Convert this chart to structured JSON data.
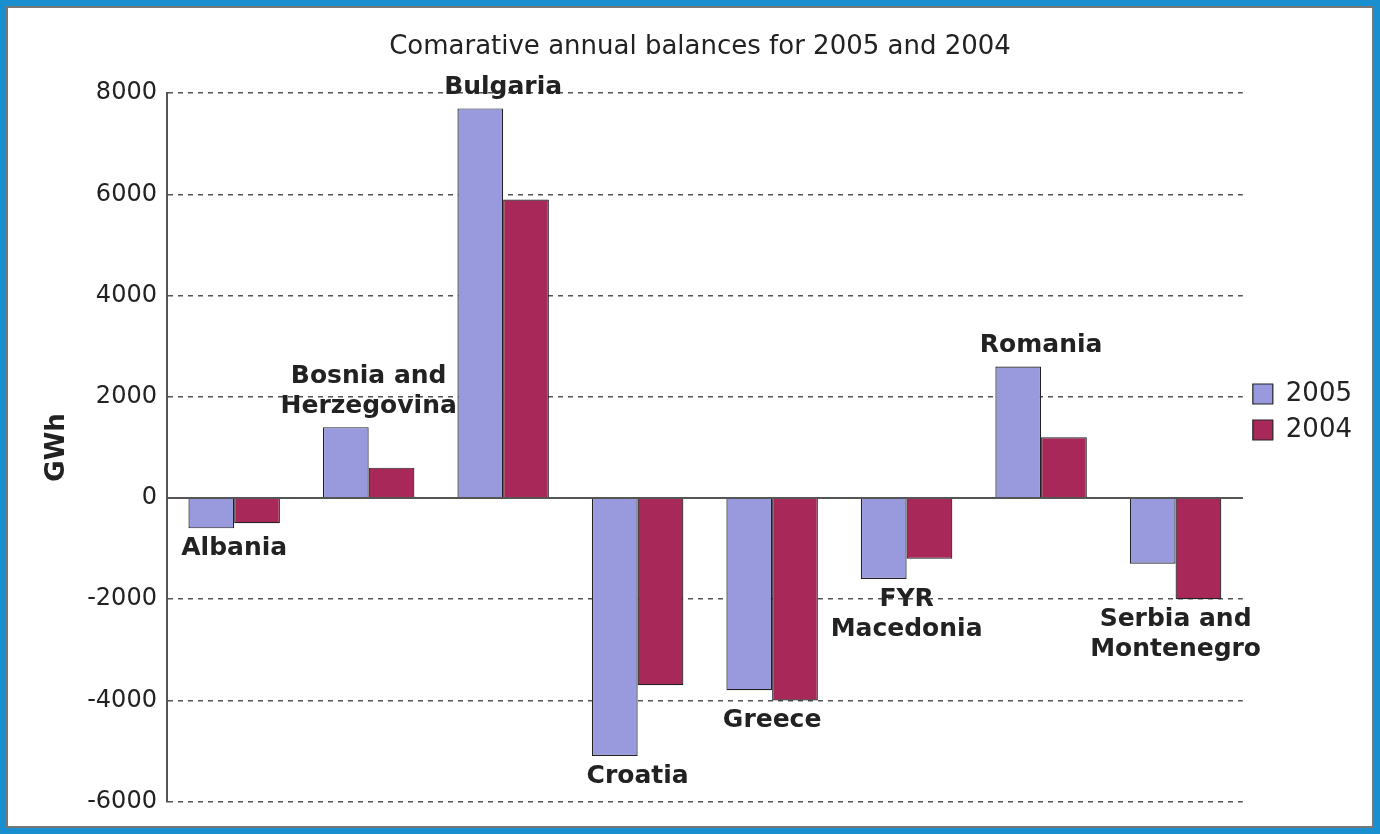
{
  "chart_data": {
    "type": "bar",
    "title": "Comarative annual balances for 2005 and 2004",
    "ylabel": "GWh",
    "categories": [
      "Albania",
      "Bosnia and Herzegovina",
      "Bulgaria",
      "Croatia",
      "Greece",
      "FYR Macedonia",
      "Romania",
      "Serbia and Montenegro"
    ],
    "series": [
      {
        "name": "2005",
        "color": "#9999dd",
        "values": [
          -600,
          1400,
          7700,
          -5100,
          -3800,
          -1600,
          2600,
          -1300
        ]
      },
      {
        "name": "2004",
        "color": "#a8285a",
        "values": [
          -500,
          600,
          5900,
          -3700,
          -4000,
          -1200,
          1200,
          -2000
        ]
      }
    ],
    "ylim": [
      -6000,
      8000
    ],
    "yticks": [
      -6000,
      -4000,
      -2000,
      0,
      2000,
      4000,
      6000,
      8000
    ],
    "grid": "y",
    "legend": "right"
  }
}
